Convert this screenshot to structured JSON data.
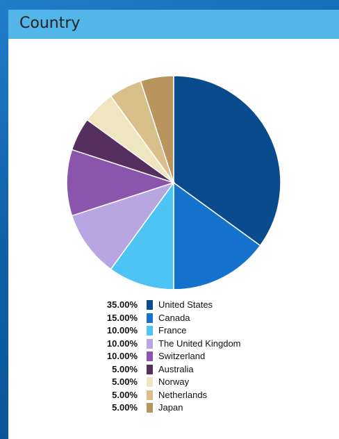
{
  "header": {
    "title": "Country"
  },
  "chart_data": {
    "type": "pie",
    "title": "",
    "legend_position": "bottom",
    "slices": [
      {
        "label": "United States",
        "value": 35.0,
        "display": "35.00%",
        "color": "#0a4b8e"
      },
      {
        "label": "Canada",
        "value": 15.0,
        "display": "15.00%",
        "color": "#1572cd"
      },
      {
        "label": "France",
        "value": 10.0,
        "display": "10.00%",
        "color": "#4ec4f5"
      },
      {
        "label": "The United Kingdom",
        "value": 10.0,
        "display": "10.00%",
        "color": "#b7a6e1"
      },
      {
        "label": "Switzerland",
        "value": 10.0,
        "display": "10.00%",
        "color": "#8c55ad"
      },
      {
        "label": "Australia",
        "value": 5.0,
        "display": "5.00%",
        "color": "#55305f"
      },
      {
        "label": "Norway",
        "value": 5.0,
        "display": "5.00%",
        "color": "#efe6c1"
      },
      {
        "label": "Netherlands",
        "value": 5.0,
        "display": "5.00%",
        "color": "#d9c08a"
      },
      {
        "label": "Japan",
        "value": 5.0,
        "display": "5.00%",
        "color": "#b8955e"
      }
    ]
  }
}
